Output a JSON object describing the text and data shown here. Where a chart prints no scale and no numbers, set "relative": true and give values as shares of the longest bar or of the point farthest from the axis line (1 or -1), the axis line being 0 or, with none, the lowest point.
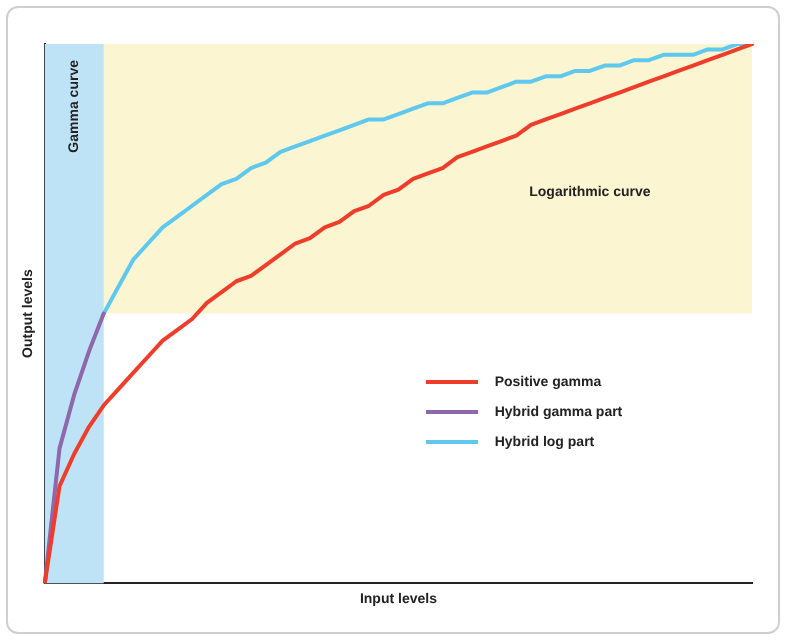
{
  "chart_data": {
    "type": "line",
    "relative": true,
    "xlabel": "Input levels",
    "ylabel": "Output levels",
    "tick_labels": false,
    "grid": false,
    "legend": "right",
    "marker": "none",
    "line_style": "solid",
    "annotations": [
      "Gamma curve",
      "Logarithmic curve"
    ],
    "categories": [
      null,
      null,
      null,
      null,
      null,
      null,
      null,
      null,
      null,
      null,
      null,
      null,
      null,
      null,
      null,
      null,
      null,
      null,
      null,
      null,
      null,
      null,
      null,
      null,
      null,
      null,
      null,
      null,
      null,
      null,
      null,
      null,
      null,
      null,
      null,
      null,
      null,
      null,
      null,
      null,
      null,
      null,
      null,
      null,
      null,
      null,
      null,
      null,
      null
    ],
    "series": [
      {
        "name": "Positive gamma",
        "color": "#ee3d2a",
        "values": [
          0,
          0.18,
          0.24,
          0.29,
          0.33,
          0.36,
          0.39,
          0.42,
          0.45,
          0.47,
          0.49,
          0.52,
          0.54,
          0.56,
          0.57,
          0.59,
          0.61,
          0.63,
          0.64,
          0.66,
          0.67,
          0.69,
          0.7,
          0.72,
          0.73,
          0.75,
          0.76,
          0.77,
          0.79,
          0.8,
          0.81,
          0.82,
          0.83,
          0.85,
          0.86,
          0.87,
          0.88,
          0.89,
          0.9,
          0.91,
          0.92,
          0.93,
          0.94,
          0.95,
          0.96,
          0.97,
          0.98,
          0.99,
          1
        ]
      },
      {
        "name": "Hybrid gamma part",
        "color": "#8e67ad",
        "values": [
          0,
          0.25,
          0.35,
          0.43,
          0.5,
          null,
          null,
          null,
          null,
          null,
          null,
          null,
          null,
          null,
          null,
          null,
          null,
          null,
          null,
          null,
          null,
          null,
          null,
          null,
          null,
          null,
          null,
          null,
          null,
          null,
          null,
          null,
          null,
          null,
          null,
          null,
          null,
          null,
          null,
          null,
          null,
          null,
          null,
          null,
          null,
          null,
          null,
          null,
          null
        ]
      },
      {
        "name": "Hybrid log part",
        "color": "#5ec8ee",
        "values": [
          null,
          null,
          null,
          null,
          0.5,
          0.55,
          0.6,
          0.63,
          0.66,
          0.68,
          0.7,
          0.72,
          0.74,
          0.75,
          0.77,
          0.78,
          0.8,
          0.81,
          0.82,
          0.83,
          0.84,
          0.85,
          0.86,
          0.86,
          0.87,
          0.88,
          0.89,
          0.89,
          0.9,
          0.91,
          0.91,
          0.92,
          0.93,
          0.93,
          0.94,
          0.94,
          0.95,
          0.95,
          0.96,
          0.96,
          0.97,
          0.97,
          0.98,
          0.98,
          0.98,
          0.99,
          0.99,
          1,
          1
        ]
      }
    ]
  }
}
